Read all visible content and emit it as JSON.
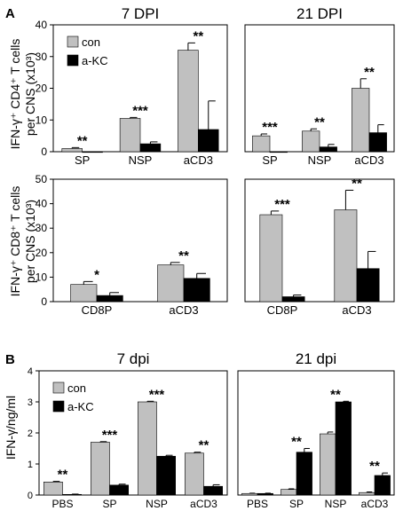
{
  "panel_labels": [
    "A",
    "B"
  ],
  "legend_labels": [
    "con",
    "a-KC"
  ],
  "colors": {
    "con": "#c0c0c0",
    "akc": "#000000",
    "error_bar": "#000000",
    "frame": "#000000"
  },
  "ylabels": {
    "cd4": [
      "IFN-γ⁺ CD4⁺ T cells",
      "per CNS (x10³)"
    ],
    "cd8": [
      "IFN-γ⁺ CD8⁺ T cells",
      "per CNS (x10³)"
    ],
    "b": "IFN-γ/ng/ml"
  },
  "chart_data": [
    {
      "type": "bar",
      "title": "7 DPI",
      "categories": [
        "SP",
        "NSP",
        "aCD3"
      ],
      "ylim": [
        0,
        40
      ],
      "yticks": [
        0,
        10,
        20,
        30,
        40
      ],
      "series": [
        {
          "name": "con",
          "values": [
            1,
            10.5,
            32
          ],
          "errors": [
            0.3,
            0.3,
            2.3
          ]
        },
        {
          "name": "a-KC",
          "values": [
            0,
            2.5,
            7
          ],
          "errors": [
            0,
            0.6,
            9
          ]
        }
      ],
      "significance": [
        "**",
        "***",
        "**"
      ]
    },
    {
      "type": "bar",
      "title": "21 DPI",
      "categories": [
        "SP",
        "NSP",
        "aCD3"
      ],
      "ylim": [
        0,
        40
      ],
      "series": [
        {
          "name": "con",
          "values": [
            5,
            6.5,
            20
          ],
          "errors": [
            0.6,
            0.7,
            3
          ]
        },
        {
          "name": "a-KC",
          "values": [
            0,
            1.5,
            6
          ],
          "errors": [
            0,
            0.8,
            2.5
          ]
        }
      ],
      "significance": [
        "***",
        "**",
        "**"
      ]
    },
    {
      "type": "bar",
      "title": "",
      "categories": [
        "CD8P",
        "aCD3"
      ],
      "ylim": [
        0,
        50
      ],
      "yticks": [
        0,
        10,
        20,
        30,
        40,
        50
      ],
      "series": [
        {
          "name": "con",
          "values": [
            7,
            15
          ],
          "errors": [
            1.2,
            1
          ]
        },
        {
          "name": "a-KC",
          "values": [
            2.5,
            9.5
          ],
          "errors": [
            1.2,
            2
          ]
        }
      ],
      "significance": [
        "*",
        "**"
      ]
    },
    {
      "type": "bar",
      "title": "",
      "categories": [
        "CD8P",
        "aCD3"
      ],
      "ylim": [
        0,
        50
      ],
      "series": [
        {
          "name": "con",
          "values": [
            35.5,
            37.5
          ],
          "errors": [
            1.5,
            8
          ]
        },
        {
          "name": "a-KC",
          "values": [
            2,
            13.5
          ],
          "errors": [
            0.7,
            7
          ]
        }
      ],
      "significance": [
        "***",
        "**"
      ]
    },
    {
      "type": "bar",
      "title": "7 dpi",
      "categories": [
        "PBS",
        "SP",
        "NSP",
        "aCD3"
      ],
      "ylim": [
        0,
        4
      ],
      "yticks": [
        0,
        1,
        2,
        3,
        4
      ],
      "series": [
        {
          "name": "con",
          "values": [
            0.42,
            1.7,
            3.0,
            1.35
          ],
          "errors": [
            0.02,
            0.02,
            0.02,
            0.03
          ]
        },
        {
          "name": "a-KC",
          "values": [
            0.02,
            0.32,
            1.25,
            0.28
          ],
          "errors": [
            0.01,
            0.03,
            0.03,
            0.05
          ]
        }
      ],
      "significance": [
        "**",
        "***",
        "***",
        "**"
      ]
    },
    {
      "type": "bar",
      "title": "21 dpi",
      "categories": [
        "PBS",
        "SP",
        "NSP",
        "aCD3"
      ],
      "ylim": [
        0,
        4
      ],
      "series": [
        {
          "name": "con",
          "values": [
            0.05,
            0.18,
            1.97,
            0.08
          ],
          "errors": [
            0.01,
            0.02,
            0.06,
            0.02
          ]
        },
        {
          "name": "a-KC",
          "values": [
            0.05,
            1.38,
            3.0,
            0.63
          ],
          "errors": [
            0.01,
            0.12,
            0.02,
            0.08
          ]
        }
      ],
      "significance": [
        "",
        "**",
        "**",
        "**"
      ]
    }
  ]
}
